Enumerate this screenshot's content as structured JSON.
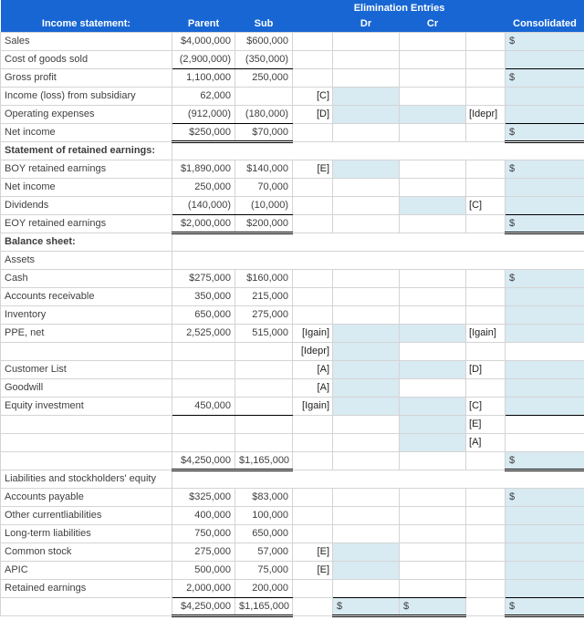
{
  "header": {
    "elimination_title": "Elimination Entries",
    "columns": {
      "label": "Income statement:",
      "parent": "Parent",
      "sub": "Sub",
      "dr": "Dr",
      "cr": "Cr",
      "consolidated": "Consolidated"
    }
  },
  "colors": {
    "header_bg": "#1766d3",
    "cell_shade": "#d8eaf2",
    "grid": "#d4d4d4",
    "section_border": "#000000",
    "text": "#3f3f3f"
  },
  "rows": [
    {
      "label": "Sales",
      "parent": "$4,000,000",
      "sub": "$600,000",
      "tag1": "",
      "dr": "",
      "cr": "",
      "tag2": "",
      "cons": "$",
      "shaded": [
        "cons"
      ],
      "borders": {}
    },
    {
      "label": "Cost of goods sold",
      "parent": "(2,900,000)",
      "sub": "(350,000)",
      "tag1": "",
      "dr": "",
      "cr": "",
      "tag2": "",
      "cons": "",
      "shaded": [
        "cons"
      ],
      "borders": {
        "ps": "b",
        "cons": "b"
      }
    },
    {
      "label": "Gross profit",
      "parent": "1,100,000",
      "sub": "250,000",
      "tag1": "",
      "dr": "",
      "cr": "",
      "tag2": "",
      "cons": "$",
      "shaded": [
        "cons"
      ],
      "borders": {}
    },
    {
      "label": "Income (loss) from subsidiary",
      "parent": "62,000",
      "sub": "",
      "tag1": "[C]",
      "dr": "",
      "cr": "",
      "tag2": "",
      "cons": "",
      "shaded": [
        "dr",
        "cons"
      ],
      "borders": {}
    },
    {
      "label": "Operating expenses",
      "parent": "(912,000)",
      "sub": "(180,000)",
      "tag1": "[D]",
      "dr": "",
      "cr": "",
      "tag2": "[Idepr]",
      "cons": "",
      "shaded": [
        "dr",
        "cr",
        "cons"
      ],
      "borders": {
        "ps": "b",
        "cons": "b"
      }
    },
    {
      "label": "Net income",
      "parent": "$250,000",
      "sub": "$70,000",
      "tag1": "",
      "dr": "",
      "cr": "",
      "tag2": "",
      "cons": "$",
      "shaded": [
        "cons"
      ],
      "borders": {
        "ps": "bd",
        "cons": "bd"
      }
    },
    {
      "label": "Statement of retained earnings:",
      "bold": true,
      "section": true
    },
    {
      "label": "BOY retained earnings",
      "parent": "$1,890,000",
      "sub": "$140,000",
      "tag1": "[E]",
      "dr": "",
      "cr": "",
      "tag2": "",
      "cons": "$",
      "shaded": [
        "dr",
        "cons"
      ],
      "borders": {}
    },
    {
      "label": "Net income",
      "parent": "250,000",
      "sub": "70,000",
      "tag1": "",
      "dr": "",
      "cr": "",
      "tag2": "",
      "cons": "",
      "shaded": [
        "cons"
      ],
      "borders": {}
    },
    {
      "label": "Dividends",
      "parent": "(140,000)",
      "sub": "(10,000)",
      "tag1": "",
      "dr": "",
      "cr": "",
      "tag2": "[C]",
      "cons": "",
      "shaded": [
        "cr",
        "cons"
      ],
      "borders": {
        "ps": "b",
        "cons": "b"
      }
    },
    {
      "label": "EOY retained earnings",
      "parent": "$2,000,000",
      "sub": "$200,000",
      "tag1": "",
      "dr": "",
      "cr": "",
      "tag2": "",
      "cons": "$",
      "shaded": [
        "cons"
      ],
      "borders": {
        "ps": "bd",
        "cons": "bd"
      }
    },
    {
      "label": "Balance sheet:",
      "bold": true,
      "section": true
    },
    {
      "label": "Assets",
      "section": true
    },
    {
      "label": "Cash",
      "parent": "$275,000",
      "sub": "$160,000",
      "tag1": "",
      "dr": "",
      "cr": "",
      "tag2": "",
      "cons": "$",
      "shaded": [
        "cons"
      ],
      "borders": {}
    },
    {
      "label": "Accounts receivable",
      "parent": "350,000",
      "sub": "215,000",
      "tag1": "",
      "dr": "",
      "cr": "",
      "tag2": "",
      "cons": "",
      "shaded": [
        "cons"
      ],
      "borders": {}
    },
    {
      "label": "Inventory",
      "parent": "650,000",
      "sub": "275,000",
      "tag1": "",
      "dr": "",
      "cr": "",
      "tag2": "",
      "cons": "",
      "shaded": [
        "cons"
      ],
      "borders": {}
    },
    {
      "label": "PPE, net",
      "parent": "2,525,000",
      "sub": "515,000",
      "tag1": "[Igain]",
      "dr": "",
      "cr": "",
      "tag2": "[Igain]",
      "cons": "",
      "shaded": [
        "dr",
        "cr",
        "cons"
      ],
      "borders": {}
    },
    {
      "label": "",
      "parent": "",
      "sub": "",
      "tag1": "[Idepr]",
      "dr": "",
      "cr": "",
      "tag2": "",
      "cons": "",
      "shaded": [
        "dr"
      ],
      "borders": {}
    },
    {
      "label": "Customer List",
      "parent": "",
      "sub": "",
      "tag1": "[A]",
      "dr": "",
      "cr": "",
      "tag2": "[D]",
      "cons": "",
      "shaded": [
        "dr",
        "cr",
        "cons"
      ],
      "borders": {}
    },
    {
      "label": "Goodwill",
      "parent": "",
      "sub": "",
      "tag1": "[A]",
      "dr": "",
      "cr": "",
      "tag2": "",
      "cons": "",
      "shaded": [
        "dr",
        "cons"
      ],
      "borders": {}
    },
    {
      "label": "Equity investment",
      "parent": "450,000",
      "sub": "",
      "tag1": "[Igain]",
      "dr": "",
      "cr": "",
      "tag2": "[C]",
      "cons": "",
      "shaded": [
        "dr",
        "cr",
        "cons"
      ],
      "borders": {
        "ps": "b",
        "cons": "b"
      }
    },
    {
      "label": "",
      "parent": "",
      "sub": "",
      "tag1": "",
      "dr": "",
      "cr": "",
      "tag2": "[E]",
      "cons": "",
      "shaded": [
        "cr"
      ],
      "borders": {}
    },
    {
      "label": "",
      "parent": "",
      "sub": "",
      "tag1": "",
      "dr": "",
      "cr": "",
      "tag2": "[A]",
      "cons": "",
      "shaded": [
        "cr"
      ],
      "borders": {}
    },
    {
      "label": "",
      "parent": "$4,250,000",
      "sub": "$1,165,000",
      "tag1": "",
      "dr": "",
      "cr": "",
      "tag2": "",
      "cons": "$",
      "shaded": [
        "cons"
      ],
      "borders": {
        "ps": "bd",
        "cons": "bd"
      }
    },
    {
      "label": "Liabilities and stockholders' equity",
      "section": true
    },
    {
      "label": "Accounts payable",
      "parent": "$325,000",
      "sub": "$83,000",
      "tag1": "",
      "dr": "",
      "cr": "",
      "tag2": "",
      "cons": "$",
      "shaded": [
        "cons"
      ],
      "borders": {}
    },
    {
      "label": "Other currentliabilities",
      "parent": "400,000",
      "sub": "100,000",
      "tag1": "",
      "dr": "",
      "cr": "",
      "tag2": "",
      "cons": "",
      "shaded": [
        "cons"
      ],
      "borders": {}
    },
    {
      "label": "Long-term liabilities",
      "parent": "750,000",
      "sub": "650,000",
      "tag1": "",
      "dr": "",
      "cr": "",
      "tag2": "",
      "cons": "",
      "shaded": [
        "cons"
      ],
      "borders": {}
    },
    {
      "label": "Common stock",
      "parent": "275,000",
      "sub": "57,000",
      "tag1": "[E]",
      "dr": "",
      "cr": "",
      "tag2": "",
      "cons": "",
      "shaded": [
        "dr",
        "cons"
      ],
      "borders": {}
    },
    {
      "label": "APIC",
      "parent": "500,000",
      "sub": "75,000",
      "tag1": "[E]",
      "dr": "",
      "cr": "",
      "tag2": "",
      "cons": "",
      "shaded": [
        "dr",
        "cons"
      ],
      "borders": {}
    },
    {
      "label": "Retained earnings",
      "parent": "2,000,000",
      "sub": "200,000",
      "tag1": "",
      "dr": "",
      "cr": "",
      "tag2": "",
      "cons": "",
      "shaded": [
        "cons"
      ],
      "borders": {
        "ps": "b",
        "cons": "b",
        "drcr": "b"
      }
    },
    {
      "label": "",
      "parent": "$4,250,000",
      "sub": "$1,165,000",
      "tag1": "",
      "dr": "$",
      "cr": "$",
      "tag2": "",
      "cons": "$",
      "shaded": [
        "dr",
        "cr",
        "cons"
      ],
      "borders": {
        "ps": "bd",
        "cons": "bd",
        "drcr": "bd"
      }
    }
  ]
}
